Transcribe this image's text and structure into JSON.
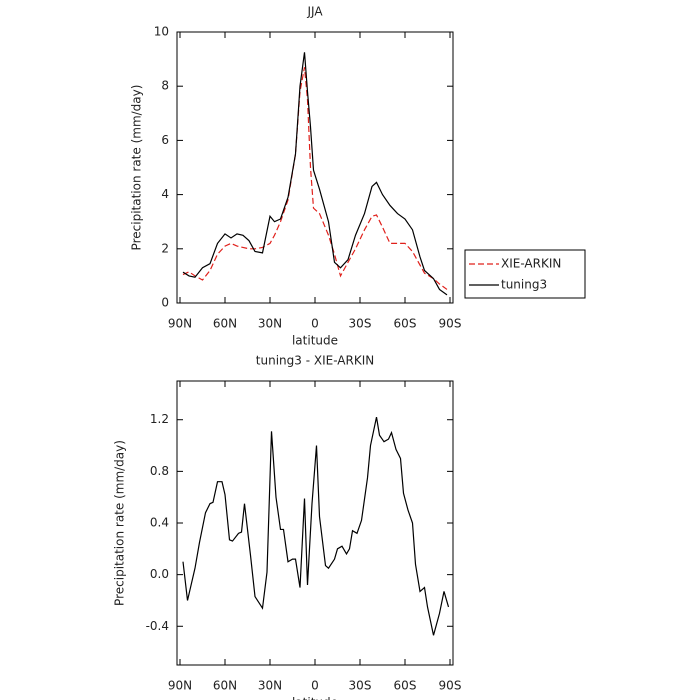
{
  "chart_data": [
    {
      "type": "line",
      "title": "JJA",
      "xlabel": "latitude",
      "ylabel": "Precipitation rate (mm/day)",
      "x": [
        88,
        84,
        80,
        75,
        70,
        65,
        60,
        56,
        52,
        48,
        44,
        40,
        35,
        30,
        27,
        23,
        18,
        13,
        10,
        7,
        5,
        3,
        1,
        -3,
        -9,
        -13,
        -17,
        -22,
        -27,
        -33,
        -38,
        -41,
        -45,
        -50,
        -55,
        -60,
        -65,
        -70,
        -73,
        -79,
        -83,
        -88
      ],
      "series": [
        {
          "name": "XIE-ARKIN",
          "color": "#e0201b",
          "dash": "dashed",
          "values": [
            1.05,
            1.15,
            1.0,
            0.85,
            1.2,
            1.8,
            2.1,
            2.2,
            2.1,
            2.05,
            2.0,
            2.0,
            2.05,
            2.2,
            2.5,
            3.0,
            3.8,
            5.5,
            7.8,
            8.7,
            7.5,
            5.0,
            3.5,
            3.3,
            2.5,
            1.8,
            1.0,
            1.5,
            2.0,
            2.7,
            3.2,
            3.25,
            2.8,
            2.2,
            2.2,
            2.2,
            1.9,
            1.4,
            1.1,
            0.9,
            0.7,
            0.5
          ]
        },
        {
          "name": "tuning3",
          "color": "#000000",
          "dash": "solid",
          "values": [
            1.14,
            1.0,
            0.95,
            1.3,
            1.45,
            2.2,
            2.55,
            2.4,
            2.55,
            2.5,
            2.3,
            1.9,
            1.85,
            3.2,
            3.0,
            3.1,
            3.9,
            5.5,
            8.0,
            9.25,
            7.8,
            6.5,
            4.9,
            4.2,
            3.0,
            1.5,
            1.3,
            1.6,
            2.5,
            3.3,
            4.3,
            4.45,
            4.0,
            3.6,
            3.3,
            3.1,
            2.7,
            1.7,
            1.2,
            0.9,
            0.5,
            0.3
          ]
        }
      ],
      "xlim": [
        92,
        -92
      ],
      "xticks": [
        {
          "value": 90,
          "label": "90N"
        },
        {
          "value": 60,
          "label": "60N"
        },
        {
          "value": 30,
          "label": "30N"
        },
        0,
        {
          "value": -30,
          "label": "30S"
        },
        {
          "value": -60,
          "label": "60S"
        },
        {
          "value": -90,
          "label": "90S"
        }
      ],
      "ylim": [
        0,
        10
      ],
      "yticks": [
        0,
        2,
        4,
        6,
        8,
        10
      ],
      "legend": "right"
    },
    {
      "type": "line",
      "title": "tuning3 - XIE-ARKIN",
      "xlabel": "latitude",
      "ylabel": "Precipitation rate (mm/day)",
      "x": [
        88,
        85,
        80,
        77,
        73,
        70,
        68,
        65,
        62,
        60,
        57,
        55,
        51,
        49,
        47,
        43,
        40,
        35,
        32,
        29,
        26,
        23,
        21,
        18,
        15,
        13,
        10,
        7,
        5,
        2,
        -1,
        -3,
        -7,
        -9,
        -13,
        -15,
        -18,
        -21,
        -23,
        -25,
        -28,
        -31,
        -35,
        -37,
        -41,
        -43,
        -46,
        -49,
        -51,
        -54,
        -57,
        -59,
        -62,
        -65,
        -67,
        -70,
        -73,
        -75,
        -79,
        -83,
        -86,
        -89
      ],
      "series": [
        {
          "color": "#000000",
          "dash": "solid",
          "values": [
            0.1,
            -0.2,
            0.05,
            0.25,
            0.48,
            0.55,
            0.56,
            0.72,
            0.72,
            0.62,
            0.27,
            0.26,
            0.32,
            0.33,
            0.55,
            0.15,
            -0.17,
            -0.26,
            0.02,
            1.11,
            0.6,
            0.35,
            0.35,
            0.1,
            0.12,
            0.12,
            -0.1,
            0.59,
            -0.08,
            0.55,
            1.0,
            0.45,
            0.07,
            0.05,
            0.12,
            0.2,
            0.22,
            0.16,
            0.2,
            0.34,
            0.32,
            0.42,
            0.75,
            1.0,
            1.22,
            1.08,
            1.03,
            1.05,
            1.1,
            0.97,
            0.9,
            0.63,
            0.5,
            0.4,
            0.08,
            -0.13,
            -0.1,
            -0.25,
            -0.47,
            -0.3,
            -0.13,
            -0.25
          ]
        }
      ],
      "xlim": [
        92,
        -92
      ],
      "xticks": [
        {
          "value": 90,
          "label": "90N"
        },
        {
          "value": 60,
          "label": "60N"
        },
        {
          "value": 30,
          "label": "30N"
        },
        0,
        {
          "value": -30,
          "label": "30S"
        },
        {
          "value": -60,
          "label": "60S"
        },
        {
          "value": -90,
          "label": "90S"
        }
      ],
      "ylim": [
        -0.7,
        1.5
      ],
      "yticks": [
        -0.4,
        {
          "value": 0,
          "label": "0.0"
        },
        0.4,
        0.8,
        1.2
      ]
    }
  ]
}
